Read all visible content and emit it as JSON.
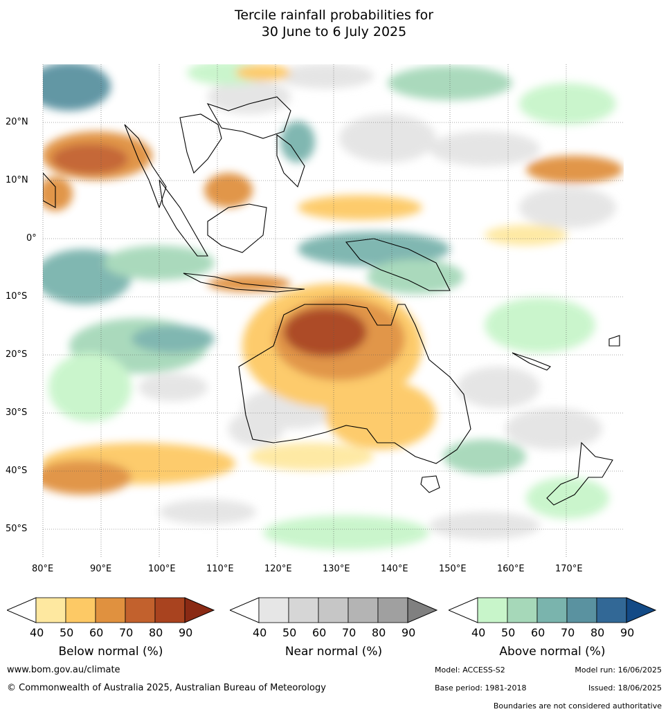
{
  "title": {
    "line1": "Tercile rainfall probabilities for",
    "line2": "30 June to 6 July 2025"
  },
  "map": {
    "lon_labels": [
      "80°E",
      "90°E",
      "100°E",
      "110°E",
      "120°E",
      "130°E",
      "140°E",
      "150°E",
      "160°E",
      "170°E"
    ],
    "lat_labels": [
      "20°N",
      "10°N",
      "0°",
      "10°S",
      "20°S",
      "30°S",
      "40°S",
      "50°S"
    ]
  },
  "legends": [
    {
      "caption": "Below normal (%)",
      "ticks": [
        "40",
        "50",
        "60",
        "70",
        "80",
        "90"
      ],
      "colors": [
        "#ffffff",
        "#fee8a0",
        "#fdc965",
        "#e0913f",
        "#c2612d",
        "#a9431f",
        "#8a2a14"
      ]
    },
    {
      "caption": "Near normal (%)",
      "ticks": [
        "40",
        "50",
        "60",
        "70",
        "80",
        "90"
      ],
      "colors": [
        "#ffffff",
        "#e6e6e6",
        "#d6d6d6",
        "#c6c6c6",
        "#b4b4b4",
        "#a0a0a0",
        "#808080"
      ]
    },
    {
      "caption": "Above normal (%)",
      "ticks": [
        "40",
        "50",
        "60",
        "70",
        "80",
        "90"
      ],
      "colors": [
        "#ffffff",
        "#c8f5ca",
        "#a6d8b9",
        "#7ab4ad",
        "#5a92a0",
        "#326896",
        "#134a86"
      ]
    }
  ],
  "footer": {
    "website": "www.bom.gov.au/climate",
    "copyright": "© Commonwealth of Australia 2025, Australian Bureau of Meteorology",
    "model": "Model: ACCESS-S2",
    "model_run": "Model run: 16/06/2025",
    "base_period": "Base period: 1981-2018",
    "issued": "Issued: 18/06/2025",
    "disclaimer": "Boundaries are not considered authoritative"
  }
}
